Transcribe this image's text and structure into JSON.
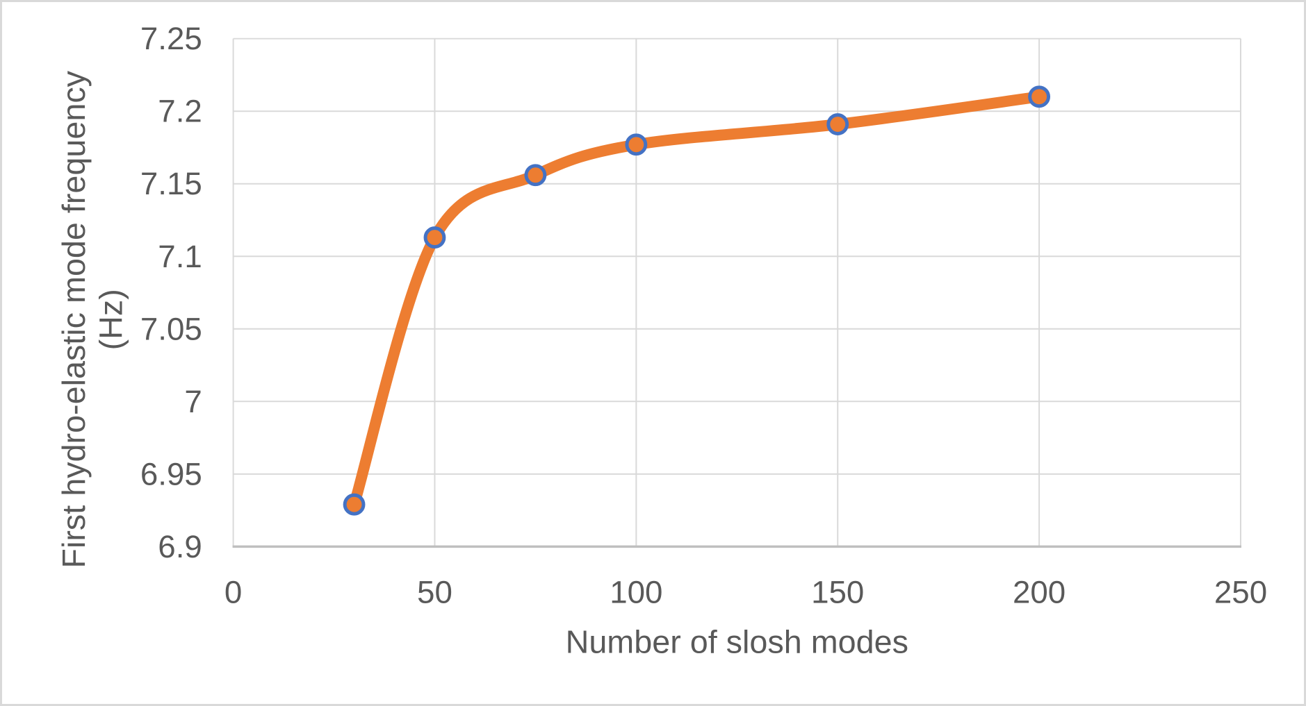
{
  "chart_data": {
    "type": "line",
    "title": "",
    "xlabel": "Number of slosh modes",
    "ylabel": "First hydro-elastic mode frequency (Hz)",
    "ylabel_lines": [
      "First hydro-elastic mode frequency",
      "(Hz)"
    ],
    "series": [
      {
        "name": "First hydro-elastic mode frequency",
        "x": [
          30,
          50,
          75,
          100,
          150,
          200
        ],
        "y": [
          6.929,
          7.113,
          7.156,
          7.177,
          7.191,
          7.21
        ]
      }
    ],
    "xlim": [
      0,
      250
    ],
    "ylim": [
      6.9,
      7.25
    ],
    "x_ticks": [
      "0",
      "50",
      "100",
      "150",
      "200",
      "250"
    ],
    "y_ticks": [
      "7.25",
      "7.2",
      "7.15",
      "7.1",
      "7.05",
      "7",
      "6.95",
      "6.9"
    ],
    "grid": true,
    "legend": false,
    "line_style": "smooth",
    "marker_style": "circle",
    "colors": {
      "line": "#ED7D31",
      "marker_fill": "#ED7D31",
      "marker_border": "#4472C4",
      "gridline": "#D9D9D9",
      "axis_line": "#BFBFBF",
      "tick_label": "#595959",
      "axis_title": "#595959",
      "frame_border": "#D9D9D9",
      "background": "#FFFFFF"
    }
  }
}
